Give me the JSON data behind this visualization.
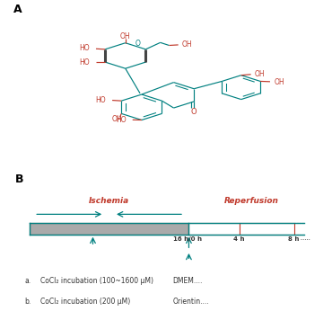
{
  "panel_a_label": "A",
  "panel_b_label": "B",
  "ischemia_label": "Ischemia",
  "reperfusion_label": "Reperfusion",
  "time_labels": [
    "16 h/0 h",
    "4 h",
    "8 h"
  ],
  "note_dmem": "DMEM....",
  "note_orientin": "Orientin....",
  "bar_color": "#aaaaaa",
  "line_color": "#c0392b",
  "teal_color": "#008080",
  "text_color_red": "#c0392b",
  "text_color_teal": "#008080",
  "text_color_dark": "#555555",
  "background": "#ffffff",
  "lw": 0.85,
  "fs": 5.5
}
